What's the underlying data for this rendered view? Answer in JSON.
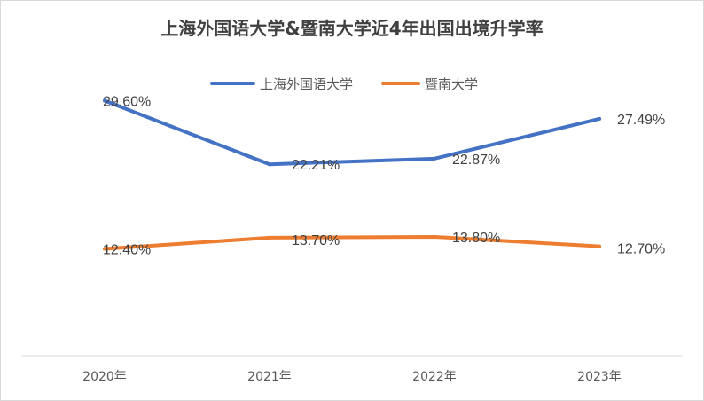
{
  "chart_data": {
    "type": "line",
    "title": "上海外国语大学&暨南大学近4年出国出境升学率",
    "categories": [
      "2020年",
      "2021年",
      "2022年",
      "2023年"
    ],
    "series": [
      {
        "name": "上海外国语大学",
        "color": "#4472C4",
        "values": [
          29.6,
          22.21,
          22.87,
          27.49
        ],
        "labels": [
          "29.60%",
          "22.21%",
          "22.87%",
          "27.49%"
        ]
      },
      {
        "name": "暨南大学",
        "color": "#ED7D31",
        "values": [
          12.4,
          13.7,
          13.8,
          12.7
        ],
        "labels": [
          "12.40%",
          "13.70%",
          "13.80%",
          "12.70%"
        ]
      }
    ],
    "ylim": [
      0,
      35
    ],
    "grid": false,
    "legend": "top-center"
  }
}
